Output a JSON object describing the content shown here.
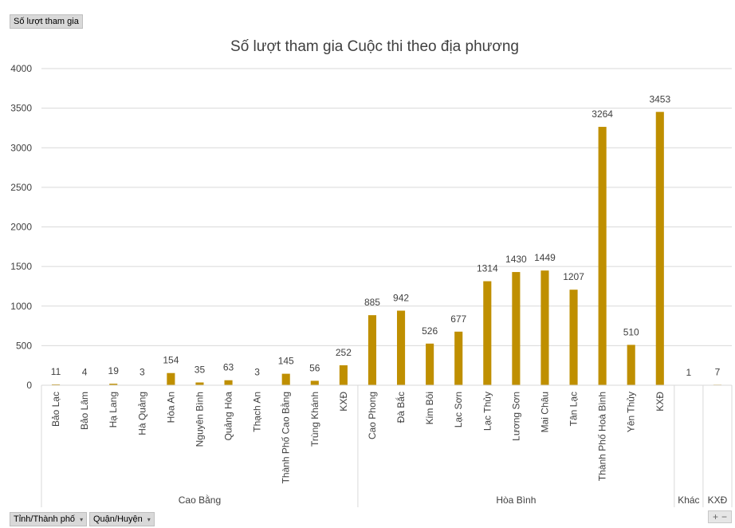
{
  "value_field_button": "Số lượt tham gia",
  "axis_field_buttons": [
    {
      "label": "Tỉnh/Thành phố",
      "arrow": "▾"
    },
    {
      "label": "Quận/Huyện",
      "arrow": "▾"
    }
  ],
  "zoom": {
    "plus": "+",
    "minus": "−"
  },
  "colors": {
    "bar": "#BF8F00",
    "grid": "#d9d9d9",
    "text": "#404040"
  },
  "chart_data": {
    "type": "bar",
    "title": "Số lượt tham gia Cuộc thi theo địa phương",
    "xlabel": "",
    "ylabel": "",
    "ylim": [
      0,
      4000
    ],
    "yticks": [
      0,
      500,
      1000,
      1500,
      2000,
      2500,
      3000,
      3500,
      4000
    ],
    "grid": true,
    "groups": [
      {
        "name": "Cao Bằng",
        "categories": [
          "Bảo Lạc",
          "Bảo Lâm",
          "Hạ Lang",
          "Hà Quảng",
          "Hòa An",
          "Nguyên Bình",
          "Quảng Hòa",
          "Thạch An",
          "Thành Phố Cao Bằng",
          "Trùng Khánh",
          "KXĐ"
        ],
        "values": [
          11,
          4,
          19,
          3,
          154,
          35,
          63,
          3,
          145,
          56,
          252
        ]
      },
      {
        "name": "Hòa Bình",
        "categories": [
          "Cao Phong",
          "Đà Bắc",
          "Kim Bôi",
          "Lạc Sơn",
          "Lạc Thủy",
          "Lương Sơn",
          "Mai Châu",
          "Tân Lạc",
          "Thành Phố Hoà Bình",
          "Yên Thủy",
          "KXĐ"
        ],
        "values": [
          885,
          942,
          526,
          677,
          1314,
          1430,
          1449,
          1207,
          3264,
          510,
          3453
        ]
      },
      {
        "name": "Khác",
        "categories": [
          ""
        ],
        "values": [
          1
        ]
      },
      {
        "name": "KXĐ",
        "categories": [
          ""
        ],
        "values": [
          7
        ]
      }
    ]
  }
}
